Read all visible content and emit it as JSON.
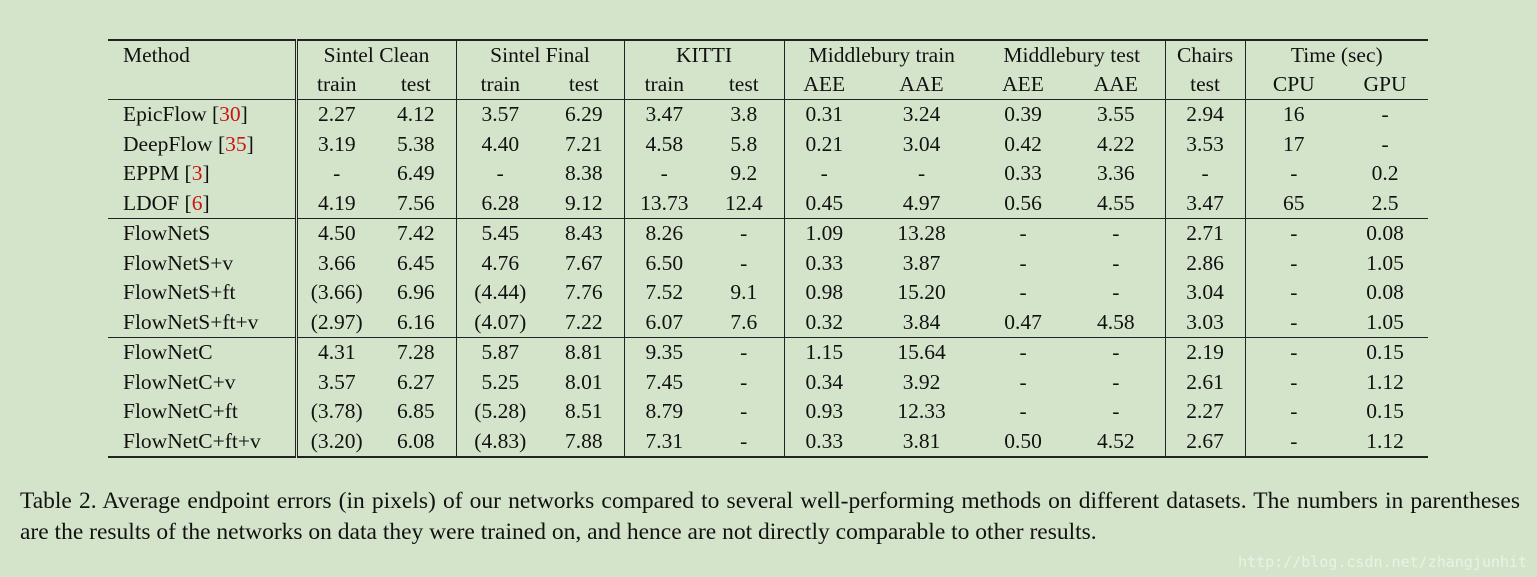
{
  "table": {
    "header_groups": {
      "method": "Method",
      "sintel_clean": "Sintel Clean",
      "sintel_final": "Sintel Final",
      "kitti": "KITTI",
      "middlebury_train": "Middlebury train",
      "middlebury_test": "Middlebury test",
      "chairs": "Chairs",
      "time": "Time (sec)"
    },
    "sub_headers": [
      "train",
      "test",
      "train",
      "test",
      "train",
      "test",
      "AEE",
      "AAE",
      "AEE",
      "AAE",
      "test",
      "CPU",
      "GPU"
    ],
    "rows": [
      {
        "method": "EpicFlow ",
        "ref": "30",
        "values": [
          "2.27",
          "4.12",
          "3.57",
          "6.29",
          "3.47",
          "3.8",
          "0.31",
          "3.24",
          "0.39",
          "3.55",
          "2.94",
          "16",
          "-"
        ]
      },
      {
        "method": "DeepFlow ",
        "ref": "35",
        "values": [
          "3.19",
          "5.38",
          "4.40",
          "7.21",
          "4.58",
          "5.8",
          "0.21",
          "3.04",
          "0.42",
          "4.22",
          "3.53",
          "17",
          "-"
        ]
      },
      {
        "method": "EPPM ",
        "ref": "3",
        "values": [
          "-",
          "6.49",
          "-",
          "8.38",
          "-",
          "9.2",
          "-",
          "-",
          "0.33",
          "3.36",
          "-",
          "-",
          "0.2"
        ]
      },
      {
        "method": "LDOF ",
        "ref": "6",
        "values": [
          "4.19",
          "7.56",
          "6.28",
          "9.12",
          "13.73",
          "12.4",
          "0.45",
          "4.97",
          "0.56",
          "4.55",
          "3.47",
          "65",
          "2.5"
        ]
      },
      {
        "method": "FlowNetS",
        "ref": "",
        "values": [
          "4.50",
          "7.42",
          "5.45",
          "8.43",
          "8.26",
          "-",
          "1.09",
          "13.28",
          "-",
          "-",
          "2.71",
          "-",
          "0.08"
        ]
      },
      {
        "method": "FlowNetS+v",
        "ref": "",
        "values": [
          "3.66",
          "6.45",
          "4.76",
          "7.67",
          "6.50",
          "-",
          "0.33",
          "3.87",
          "-",
          "-",
          "2.86",
          "-",
          "1.05"
        ]
      },
      {
        "method": "FlowNetS+ft",
        "ref": "",
        "values": [
          "(3.66)",
          "6.96",
          "(4.44)",
          "7.76",
          "7.52",
          "9.1",
          "0.98",
          "15.20",
          "-",
          "-",
          "3.04",
          "-",
          "0.08"
        ]
      },
      {
        "method": "FlowNetS+ft+v",
        "ref": "",
        "values": [
          "(2.97)",
          "6.16",
          "(4.07)",
          "7.22",
          "6.07",
          "7.6",
          "0.32",
          "3.84",
          "0.47",
          "4.58",
          "3.03",
          "-",
          "1.05"
        ]
      },
      {
        "method": "FlowNetC",
        "ref": "",
        "values": [
          "4.31",
          "7.28",
          "5.87",
          "8.81",
          "9.35",
          "-",
          "1.15",
          "15.64",
          "-",
          "-",
          "2.19",
          "-",
          "0.15"
        ]
      },
      {
        "method": "FlowNetC+v",
        "ref": "",
        "values": [
          "3.57",
          "6.27",
          "5.25",
          "8.01",
          "7.45",
          "-",
          "0.34",
          "3.92",
          "-",
          "-",
          "2.61",
          "-",
          "1.12"
        ]
      },
      {
        "method": "FlowNetC+ft",
        "ref": "",
        "values": [
          "(3.78)",
          "6.85",
          "(5.28)",
          "8.51",
          "8.79",
          "-",
          "0.93",
          "12.33",
          "-",
          "-",
          "2.27",
          "-",
          "0.15"
        ]
      },
      {
        "method": "FlowNetC+ft+v",
        "ref": "",
        "values": [
          "(3.20)",
          "6.08",
          "(4.83)",
          "7.88",
          "7.31",
          "-",
          "0.33",
          "3.81",
          "0.50",
          "4.52",
          "2.67",
          "-",
          "1.12"
        ]
      }
    ]
  },
  "caption": "Table 2. Average endpoint errors (in pixels) of our networks compared to several well-performing methods on different datasets. The numbers in parentheses are the results of the networks on data they were trained on, and hence are not directly comparable to other results.",
  "watermark": "http://blog.csdn.net/zhangjunhit",
  "colors": {
    "background": "#d4e4ca",
    "reference_link": "#c81414",
    "rule": "#222222",
    "watermark": "#eef4ea"
  }
}
